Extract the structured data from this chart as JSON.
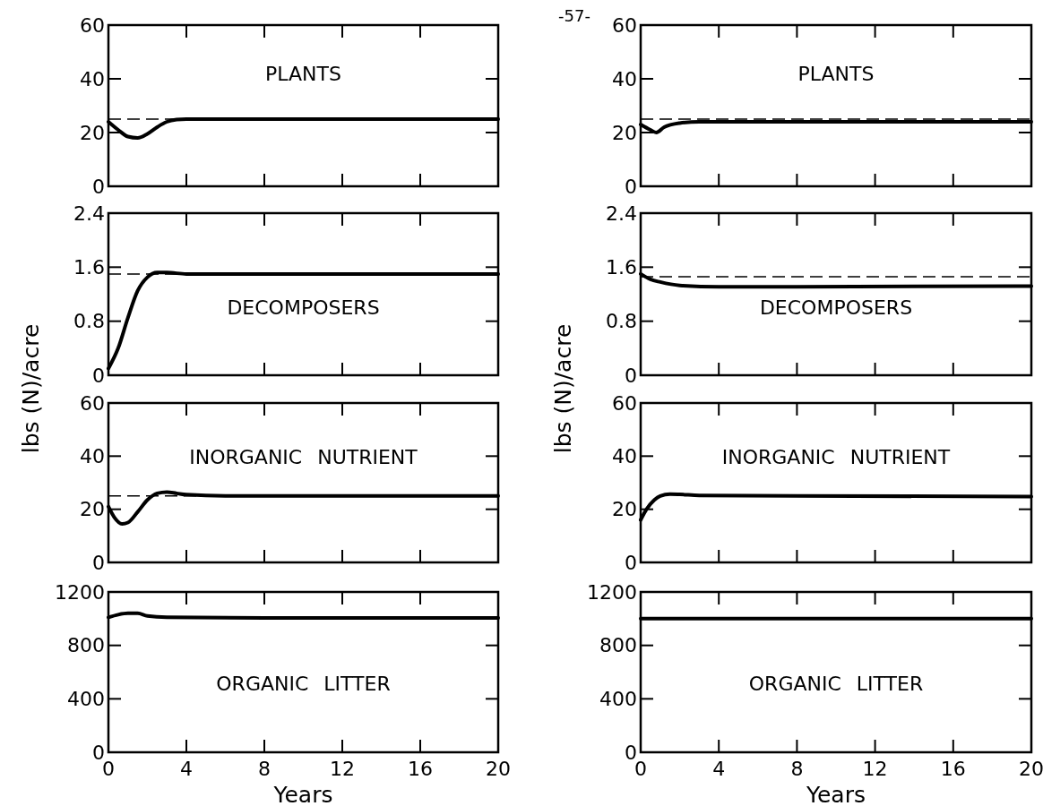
{
  "chart_data": [
    {
      "type": "line",
      "title": "PLANTS",
      "xlim": [
        0,
        20
      ],
      "xticks": [
        0,
        4,
        8,
        12,
        16,
        20
      ],
      "ylim": [
        0,
        60
      ],
      "yticks": [
        0,
        20,
        40,
        60
      ],
      "tick_labels": "y",
      "grid": false,
      "series": [
        {
          "color": "#000000",
          "x": [
            0,
            0.5,
            1,
            1.5,
            2,
            2.5,
            3,
            3.5,
            4,
            8,
            12,
            16,
            20
          ],
          "values": [
            24,
            21,
            18.5,
            18,
            19.5,
            22,
            24,
            24.8,
            25,
            25,
            25,
            25,
            25
          ]
        }
      ],
      "ref_lines": [
        {
          "axis": "y",
          "value": 25,
          "color": "#000000",
          "line_style": "dashed"
        }
      ]
    },
    {
      "type": "line",
      "title": "DECOMPOSERS",
      "ylabel": "lbs (N)/acre",
      "xlim": [
        0,
        20
      ],
      "xticks": [
        0,
        4,
        8,
        12,
        16,
        20
      ],
      "ylim": [
        0,
        2.4
      ],
      "yticks": [
        0,
        0.8,
        1.6,
        2.4
      ],
      "tick_labels": "y",
      "grid": false,
      "series": [
        {
          "color": "#000000",
          "x": [
            0,
            0.5,
            1,
            1.5,
            2,
            2.5,
            3,
            4,
            8,
            12,
            16,
            20
          ],
          "values": [
            0.1,
            0.4,
            0.85,
            1.25,
            1.45,
            1.52,
            1.52,
            1.5,
            1.5,
            1.5,
            1.5,
            1.5
          ]
        }
      ],
      "ref_lines": [
        {
          "axis": "y",
          "value": 1.5,
          "color": "#000000",
          "line_style": "dashed"
        }
      ]
    },
    {
      "type": "line",
      "title": "INORGANIC NUTRIENT",
      "xlim": [
        0,
        20
      ],
      "xticks": [
        0,
        4,
        8,
        12,
        16,
        20
      ],
      "ylim": [
        0,
        60
      ],
      "yticks": [
        0,
        20,
        40,
        60
      ],
      "tick_labels": "y",
      "grid": false,
      "series": [
        {
          "color": "#000000",
          "x": [
            0,
            0.3,
            0.7,
            1,
            1.5,
            2,
            2.5,
            3,
            3.5,
            4,
            6,
            12,
            20
          ],
          "values": [
            21,
            17,
            14.5,
            15,
            19,
            23.5,
            26,
            26.5,
            26,
            25.5,
            25,
            25,
            25
          ]
        }
      ],
      "ref_lines": [
        {
          "axis": "y",
          "value": 25,
          "color": "#000000",
          "line_style": "dashed"
        }
      ]
    },
    {
      "type": "line",
      "title": "ORGANIC LITTER",
      "xlabel": "Years",
      "xlim": [
        0,
        20
      ],
      "xticks": [
        0,
        4,
        8,
        12,
        16,
        20
      ],
      "ylim": [
        0,
        1200
      ],
      "yticks": [
        0,
        400,
        800,
        1200
      ],
      "grid": false,
      "series": [
        {
          "color": "#000000",
          "x": [
            0,
            0.5,
            1,
            1.5,
            2,
            3,
            8,
            20
          ],
          "values": [
            1010,
            1030,
            1040,
            1040,
            1020,
            1010,
            1005,
            1005
          ]
        }
      ]
    },
    {
      "type": "line",
      "title": "PLANTS",
      "annotations": [
        "-57-"
      ],
      "xlim": [
        0,
        20
      ],
      "xticks": [
        0,
        4,
        8,
        12,
        16,
        20
      ],
      "ylim": [
        0,
        60
      ],
      "yticks": [
        0,
        20,
        40,
        60
      ],
      "tick_labels": "y",
      "grid": false,
      "series": [
        {
          "color": "#000000",
          "x": [
            0,
            0.5,
            0.8,
            1.2,
            2,
            3,
            8,
            20
          ],
          "values": [
            23,
            21,
            20,
            22,
            23.5,
            24,
            24,
            24
          ]
        }
      ],
      "ref_lines": [
        {
          "axis": "y",
          "value": 25,
          "color": "#000000",
          "line_style": "dashed"
        }
      ]
    },
    {
      "type": "line",
      "title": "DECOMPOSERS",
      "ylabel": "lbs (N)/acre",
      "xlim": [
        0,
        20
      ],
      "xticks": [
        0,
        4,
        8,
        12,
        16,
        20
      ],
      "ylim": [
        0,
        2.4
      ],
      "yticks": [
        0,
        0.8,
        1.6,
        2.4
      ],
      "tick_labels": "y",
      "grid": false,
      "series": [
        {
          "color": "#000000",
          "x": [
            0,
            0.5,
            1,
            2,
            4,
            8,
            20
          ],
          "values": [
            1.5,
            1.42,
            1.38,
            1.33,
            1.31,
            1.31,
            1.32
          ]
        }
      ],
      "ref_lines": [
        {
          "axis": "y",
          "value": 1.46,
          "color": "#000000",
          "line_style": "dashed"
        }
      ]
    },
    {
      "type": "line",
      "title": "INORGANIC NUTRIENT",
      "xlim": [
        0,
        20
      ],
      "xticks": [
        0,
        4,
        8,
        12,
        16,
        20
      ],
      "ylim": [
        0,
        60
      ],
      "yticks": [
        0,
        20,
        40,
        60
      ],
      "tick_labels": "y",
      "grid": false,
      "series": [
        {
          "color": "#000000",
          "x": [
            0,
            0.3,
            0.7,
            1,
            1.5,
            2,
            3,
            8,
            20
          ],
          "values": [
            16,
            20,
            23.5,
            25,
            25.7,
            25.6,
            25.2,
            25,
            24.8
          ]
        }
      ]
    },
    {
      "type": "line",
      "title": "ORGANIC LITTER",
      "xlabel": "Years",
      "xlim": [
        0,
        20
      ],
      "xticks": [
        0,
        4,
        8,
        12,
        16,
        20
      ],
      "ylim": [
        0,
        1200
      ],
      "yticks": [
        0,
        400,
        800,
        1200
      ],
      "grid": false,
      "series": [
        {
          "color": "#000000",
          "x": [
            0,
            4,
            8,
            12,
            16,
            20
          ],
          "values": [
            1000,
            1000,
            1000,
            1000,
            1000,
            1000
          ]
        }
      ]
    }
  ]
}
